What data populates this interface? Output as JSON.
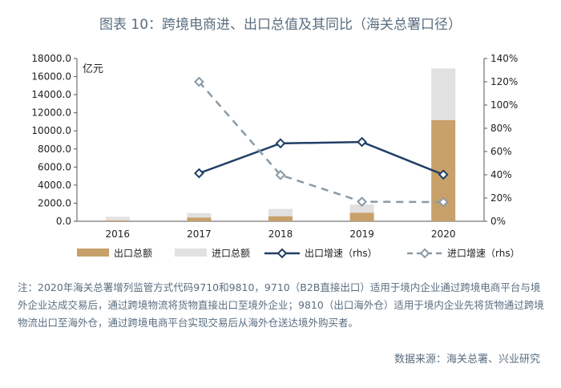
{
  "chart_data": {
    "type": "bar+line",
    "title": "图表 10：跨境电商进、出口总值及其同比（海关总署口径）",
    "unit_label": "亿元",
    "categories": [
      "2016",
      "2017",
      "2018",
      "2019",
      "2020"
    ],
    "bar_series": [
      {
        "name": "出口总额",
        "values": [
          100,
          400,
          560,
          950,
          11200
        ],
        "color": "#c8a06a"
      },
      {
        "name": "进口总额",
        "values": [
          400,
          500,
          800,
          900,
          5700
        ],
        "color": "#e1e1e1"
      }
    ],
    "line_series": [
      {
        "name": "出口增速（rhs）",
        "values": [
          null,
          41.3,
          67.0,
          68.2,
          40.1
        ],
        "color": "#1f3f66",
        "style": "solid",
        "marker": "diamond"
      },
      {
        "name": "进口增速（rhs）",
        "values": [
          null,
          120.0,
          39.8,
          16.8,
          16.5
        ],
        "color": "#8a9aa6",
        "style": "dashed",
        "marker": "diamond"
      }
    ],
    "ylim_left": [
      0,
      18000
    ],
    "left_ticks": [
      "18000.0",
      "16000.0",
      "14000.0",
      "12000.0",
      "10000.0",
      "8000.0",
      "6000.0",
      "4000.0",
      "2000.0",
      "0.0"
    ],
    "ylim_right": [
      0,
      140
    ],
    "right_ticks": [
      "140%",
      "120%",
      "100%",
      "80%",
      "60%",
      "40%",
      "20%",
      "0%"
    ],
    "grid": false,
    "legend_position": "bottom"
  },
  "note": "注：2020年海关总署增列监管方式代码9710和9810，9710（B2B直接出口）适用于境内企业通过跨境电商平台与境外企业达成交易后，通过跨境物流将货物直接出口至境外企业；9810（出口海外仓）适用于境内企业先将货物通过跨境物流出口至海外仓，通过跨境电商平台实现交易后从海外仓送达境外购买者。",
  "source": "数据来源：海关总署、兴业研究"
}
